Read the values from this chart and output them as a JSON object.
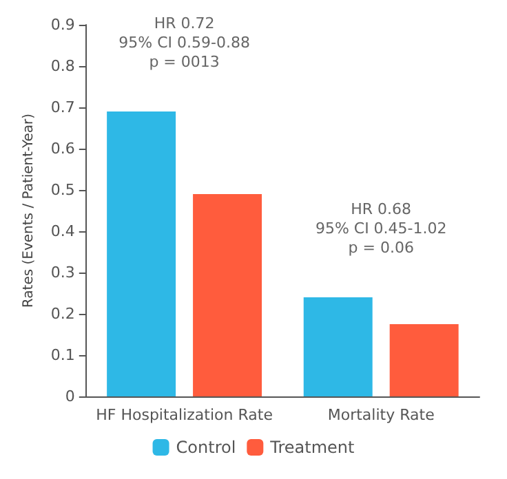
{
  "chart_data": {
    "type": "bar",
    "ylabel": "Rates (Events / Patient-Year)",
    "categories": [
      "HF Hospitalization Rate",
      "Mortality Rate"
    ],
    "series": [
      {
        "name": "Control",
        "color": "#2eb8e6",
        "values": [
          0.69,
          0.24
        ]
      },
      {
        "name": "Treatment",
        "color": "#ff5c3d",
        "values": [
          0.49,
          0.175
        ]
      }
    ],
    "ylim": [
      0,
      0.9
    ],
    "yticks": [
      0,
      0.1,
      0.2,
      0.3,
      0.4,
      0.5,
      0.6,
      0.7,
      0.8,
      0.9
    ],
    "annotations": [
      "HR 0.72\n95% CI 0.59-0.88\np = 0013",
      "HR 0.68\n95% CI 0.45-1.02\np = 0.06"
    ],
    "grid": false,
    "legend": "bottom"
  }
}
